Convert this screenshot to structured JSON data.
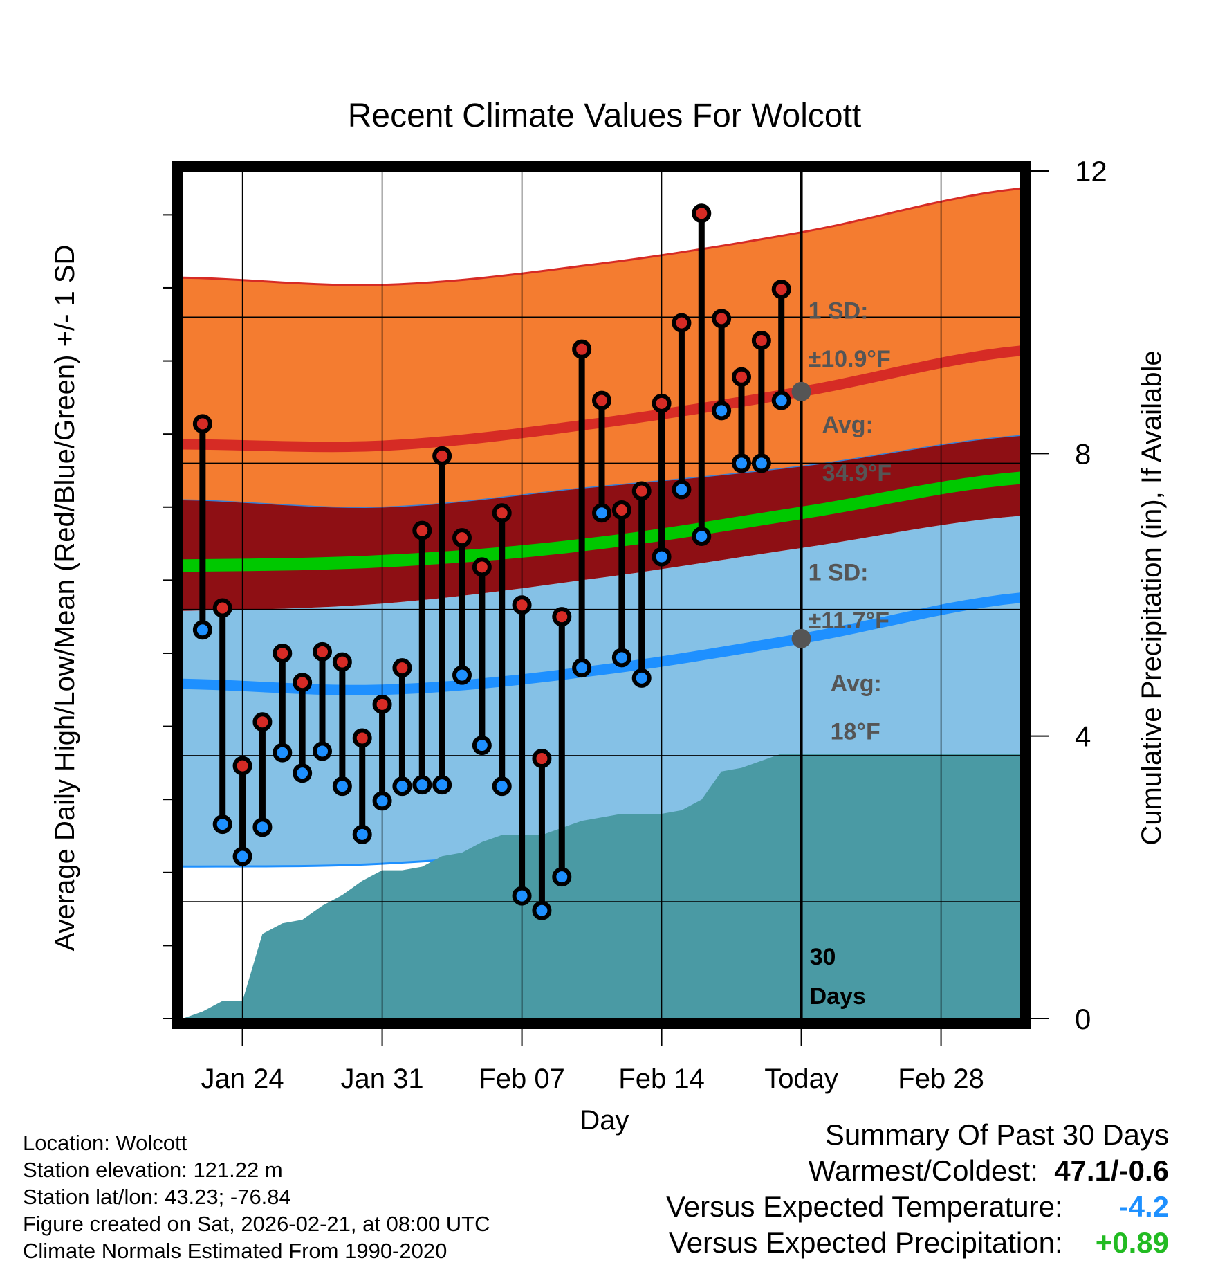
{
  "chart_data": {
    "type": "climate-range",
    "title": "Recent Climate Values For Wolcott",
    "xlabel": "Day",
    "ylabel_left": "Average Daily High/Low/Mean (Red/Blue/Green) +/- 1 SD",
    "ylabel_right": "Cumulative Precipitation (in), If Available",
    "ylim_left": [
      -8,
      50
    ],
    "yticks_left": [
      0,
      10,
      20,
      30,
      40,
      50
    ],
    "ylim_right": [
      0,
      12
    ],
    "yticks_right": [
      0,
      4,
      8,
      12
    ],
    "x_range_days": [
      -31,
      11
    ],
    "x_ticks": [
      {
        "offset": -28,
        "label": "Jan 24"
      },
      {
        "offset": -21,
        "label": "Jan 31"
      },
      {
        "offset": -14,
        "label": "Feb 07"
      },
      {
        "offset": -7,
        "label": "Feb 14"
      },
      {
        "offset": 0,
        "label": "Today"
      },
      {
        "offset": 7,
        "label": "Feb 28"
      }
    ],
    "today_label": "30\nDays",
    "normals": {
      "offsets": [
        -31,
        -21,
        -11,
        0,
        11
      ],
      "high_mean": [
        31.3,
        31.2,
        32.6,
        34.9,
        37.7
      ],
      "high_plus_sd": [
        42.7,
        42.2,
        43.5,
        45.8,
        48.8
      ],
      "high_minus_sd": [
        27.5,
        27.0,
        28.3,
        29.8,
        31.9
      ],
      "low_mean": [
        14.9,
        14.5,
        15.7,
        18.0,
        20.8
      ],
      "low_plus_sd": [
        19.9,
        20.4,
        22.0,
        24.2,
        26.4
      ],
      "low_minus_sd": [
        2.4,
        2.6,
        3.8,
        6.3,
        9.1
      ],
      "mean": [
        23.0,
        23.3,
        24.4,
        26.6,
        29.0
      ]
    },
    "daily": {
      "offsets": [
        -30,
        -29,
        -28,
        -27,
        -26,
        -25,
        -24,
        -23,
        -22,
        -21,
        -20,
        -19,
        -18,
        -17,
        -16,
        -15,
        -14,
        -13,
        -12,
        -11,
        -10,
        -9,
        -8,
        -7,
        -6,
        -5,
        -4,
        -3,
        -2,
        -1
      ],
      "highs": [
        32.7,
        20.1,
        9.3,
        12.3,
        17.0,
        15.0,
        17.1,
        16.4,
        11.2,
        13.5,
        16.0,
        25.4,
        30.5,
        24.9,
        22.9,
        26.6,
        20.3,
        9.8,
        19.5,
        37.8,
        34.3,
        26.8,
        28.1,
        34.1,
        39.6,
        47.1,
        39.9,
        35.9,
        38.4,
        41.9
      ],
      "lows": [
        18.6,
        5.3,
        3.1,
        5.1,
        10.2,
        8.8,
        10.3,
        7.9,
        4.6,
        6.9,
        7.9,
        8.0,
        8.0,
        15.5,
        10.7,
        7.9,
        0.4,
        -0.6,
        1.7,
        16.0,
        26.6,
        16.7,
        15.3,
        23.6,
        28.2,
        25.0,
        33.6,
        30.0,
        30.0,
        34.3
      ]
    },
    "precip_cumulative": {
      "offsets": [
        -31,
        -30,
        -29,
        -28,
        -27,
        -26,
        -25,
        -24,
        -23,
        -22,
        -21,
        -20,
        -19,
        -18,
        -17,
        -16,
        -15,
        -14,
        -13,
        -12,
        -11,
        -10,
        -9,
        -8,
        -7,
        -6,
        -5,
        -4,
        -3,
        -2,
        -1,
        0,
        11
      ],
      "values": [
        0.0,
        0.1,
        0.25,
        0.25,
        1.2,
        1.35,
        1.4,
        1.6,
        1.75,
        1.95,
        2.1,
        2.1,
        2.15,
        2.3,
        2.35,
        2.5,
        2.6,
        2.6,
        2.6,
        2.7,
        2.8,
        2.85,
        2.9,
        2.9,
        2.9,
        2.95,
        3.1,
        3.5,
        3.55,
        3.65,
        3.75,
        3.75,
        3.75
      ]
    },
    "annotations": {
      "high_sd_title": "1 SD:",
      "high_sd_value": "±10.9°F",
      "high_avg_title": "Avg:",
      "high_avg_value": "34.9°F",
      "high_avg": 34.9,
      "low_sd_title": "1 SD:",
      "low_sd_value": "±11.7°F",
      "low_avg_title": "Avg:",
      "low_avg_value": "18°F",
      "low_avg": 18.0
    },
    "colors": {
      "high_band": "#f47c30",
      "high_line": "#d62b25",
      "mid_band": "#8e0f14",
      "mean_line": "#00c800",
      "low_band": "#85c1e6",
      "low_line": "#1e90ff",
      "precip": "#4a9aa4",
      "high_dot": "#d62b25",
      "low_dot": "#1e90ff",
      "annotation": "#555555"
    }
  },
  "info": {
    "location": "Location: Wolcott",
    "elevation": "Station elevation: 121.22 m",
    "latlon": "Station lat/lon: 43.23; -76.84",
    "created": "Figure created on Sat, 2026-02-21, at 08:00 UTC",
    "normals": "Climate Normals Estimated From 1990-2020"
  },
  "summary": {
    "title": "Summary Of Past 30 Days",
    "warmest_label": "Warmest/Coldest:",
    "warmest_value": "47.1/-0.6",
    "temp_label": "Versus Expected Temperature:",
    "temp_value": "-4.2",
    "precip_label": "Versus Expected Precipitation:",
    "precip_value": "+0.89"
  }
}
